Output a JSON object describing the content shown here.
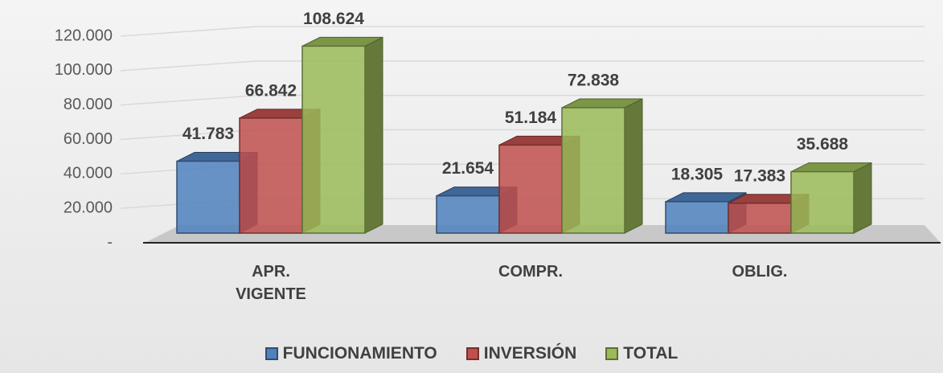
{
  "chart_data": {
    "type": "bar3d",
    "categories": [
      "APR. VIGENTE",
      "COMPR.",
      "OBLIG."
    ],
    "series": [
      {
        "name": "FUNCIONAMIENTO",
        "color": "#4f81bd",
        "values": [
          41783,
          21654,
          18305
        ],
        "value_labels": [
          "41.783",
          "21.654",
          "18.305"
        ]
      },
      {
        "name": "INVERSIÓN",
        "color": "#c0504d",
        "values": [
          66842,
          51184,
          17383
        ],
        "value_labels": [
          "66.842",
          "51.184",
          "17.383"
        ]
      },
      {
        "name": "TOTAL",
        "color": "#9bbb59",
        "values": [
          108624,
          72838,
          35688
        ],
        "value_labels": [
          "108.624",
          "72.838",
          "35.688"
        ]
      }
    ],
    "ylim": [
      0,
      120000
    ],
    "yticks": [
      {
        "value": 0,
        "label": "-"
      },
      {
        "value": 20000,
        "label": "20.000"
      },
      {
        "value": 40000,
        "label": "40.000"
      },
      {
        "value": 60000,
        "label": "60.000"
      },
      {
        "value": 80000,
        "label": "80.000"
      },
      {
        "value": 100000,
        "label": "100.000"
      },
      {
        "value": 120000,
        "label": "120.000"
      }
    ],
    "grid": true,
    "legend": "bottom"
  }
}
